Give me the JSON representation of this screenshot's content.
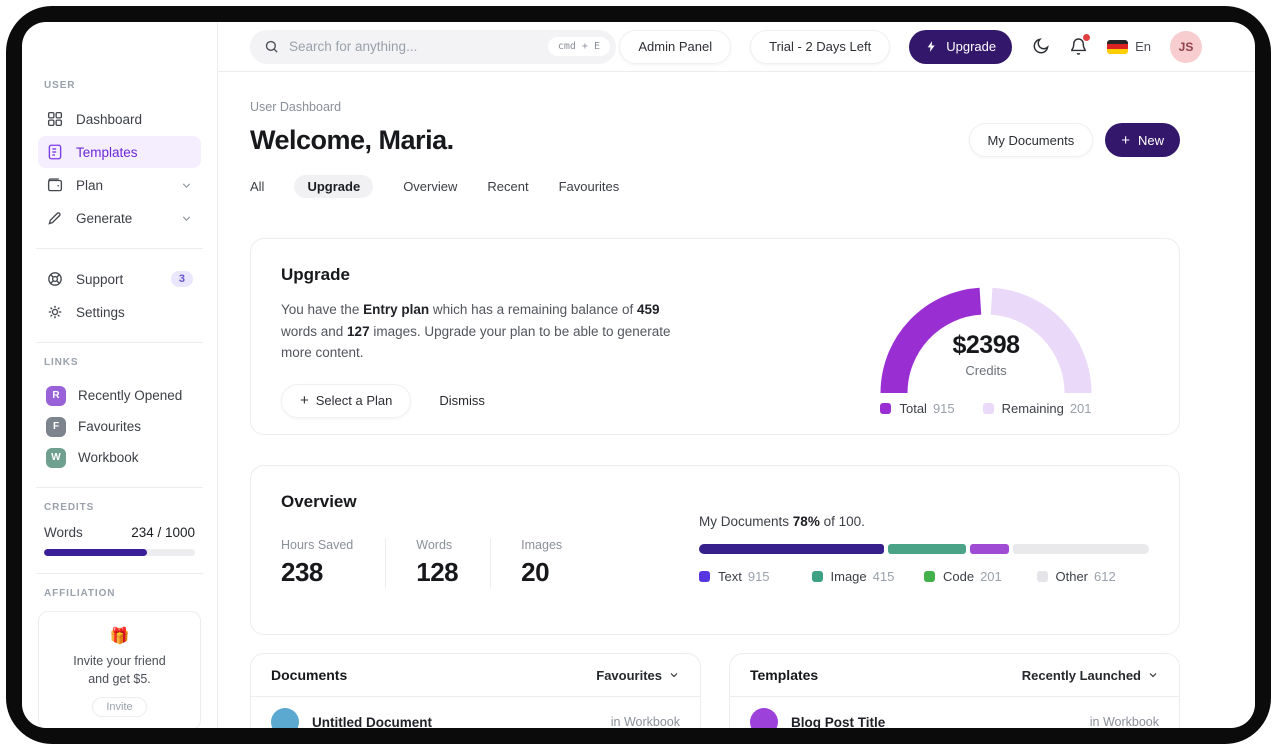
{
  "topbar": {
    "search": {
      "placeholder": "Search for anything...",
      "shortcut": "cmd + E"
    },
    "admin_panel_label": "Admin Panel",
    "trial_label": "Trial - 2 Days Left",
    "upgrade_label": "Upgrade",
    "language_label": "En",
    "avatar_initials": "JS"
  },
  "sidebar": {
    "sections": {
      "user": "USER",
      "links": "LINKS",
      "credits": "CREDITS",
      "affiliation": "AFFILIATION"
    },
    "items": [
      {
        "label": "Dashboard"
      },
      {
        "label": "Templates"
      },
      {
        "label": "Plan"
      },
      {
        "label": "Generate"
      },
      {
        "label": "Support",
        "badge": "3"
      },
      {
        "label": "Settings"
      }
    ],
    "links": [
      {
        "initial": "R",
        "label": "Recently Opened",
        "color": "#9a62d9"
      },
      {
        "initial": "F",
        "label": "Favourites",
        "color": "#7e848e"
      },
      {
        "initial": "W",
        "label": "Workbook",
        "color": "#6fa08f"
      }
    ],
    "credits": {
      "label": "Words",
      "value": "234 / 1000",
      "percent": 68,
      "bar_color": "#3a1f99"
    },
    "affiliation": {
      "emoji": "🎁",
      "line1": "Invite your friend",
      "line2": "and get $5.",
      "button_label": "Invite"
    }
  },
  "header": {
    "breadcrumb": "User Dashboard",
    "title": "Welcome, Maria.",
    "my_documents_label": "My Documents",
    "new_label": "New",
    "tabs": [
      {
        "label": "All"
      },
      {
        "label": "Upgrade"
      },
      {
        "label": "Overview"
      },
      {
        "label": "Recent"
      },
      {
        "label": "Favourites"
      }
    ]
  },
  "upgrade_card": {
    "title": "Upgrade",
    "body": {
      "p1": "You have the ",
      "b1": "Entry plan",
      "p2": " which has a remaining balance of ",
      "b2": "459",
      "p3": " words and ",
      "b3": "127",
      "p4": " images. Upgrade your plan to be able to generate more content."
    },
    "select_plan_label": "Select a Plan",
    "dismiss_label": "Dismiss",
    "gauge": {
      "value": "$2398",
      "label": "Credits",
      "colors": {
        "total": "#992ed2",
        "remaining": "#ead9f8"
      },
      "legend": [
        {
          "name": "Total",
          "value": "915",
          "color": "#992ed2"
        },
        {
          "name": "Remaining",
          "value": "201",
          "color": "#ead9f8"
        }
      ]
    }
  },
  "overview_card": {
    "title": "Overview",
    "stats": [
      {
        "label": "Hours Saved",
        "value": "238"
      },
      {
        "label": "Words",
        "value": "128"
      },
      {
        "label": "Images",
        "value": "20"
      }
    ],
    "progress_text": {
      "prefix": "My Documents",
      "percent": "78%",
      "suffix": "of 100."
    },
    "bar": {
      "track": "#e9e9ec",
      "segments": [
        {
          "color": "#38208c",
          "percent": 41
        },
        {
          "color": "#4aa287",
          "percent": 17.5
        },
        {
          "color": "#9f4bd4",
          "percent": 8.5
        }
      ]
    },
    "legend": [
      {
        "name": "Text",
        "value": "915",
        "color": "#5536e0"
      },
      {
        "name": "Image",
        "value": "415",
        "color": "#3da184"
      },
      {
        "name": "Code",
        "value": "201",
        "color": "#43b14b"
      },
      {
        "name": "Other",
        "value": "612",
        "color": "#e4e4e9"
      }
    ]
  },
  "documents_card": {
    "title": "Documents",
    "filter_label": "Favourites",
    "rows": [
      {
        "name": "Untitled Document",
        "location": "in Workbook",
        "color": "#5ba9d0"
      }
    ]
  },
  "templates_card": {
    "title": "Templates",
    "filter_label": "Recently Launched",
    "rows": [
      {
        "name": "Blog Post Title",
        "location": "in Workbook",
        "color": "#9c41d9"
      }
    ]
  },
  "chart_data": [
    {
      "type": "pie",
      "variant": "half-donut-gauge",
      "title": "Credits",
      "center_value": "$2398",
      "center_label": "Credits",
      "series": [
        {
          "name": "Total",
          "value": 915
        },
        {
          "name": "Remaining",
          "value": 201
        }
      ],
      "legend_position": "bottom"
    },
    {
      "type": "bar",
      "variant": "stacked-progress",
      "title": "My Documents 78% of 100.",
      "series": [
        {
          "name": "Text",
          "value": 915
        },
        {
          "name": "Image",
          "value": 415
        },
        {
          "name": "Code",
          "value": 201
        },
        {
          "name": "Other",
          "value": 612
        }
      ],
      "legend_position": "bottom"
    }
  ]
}
